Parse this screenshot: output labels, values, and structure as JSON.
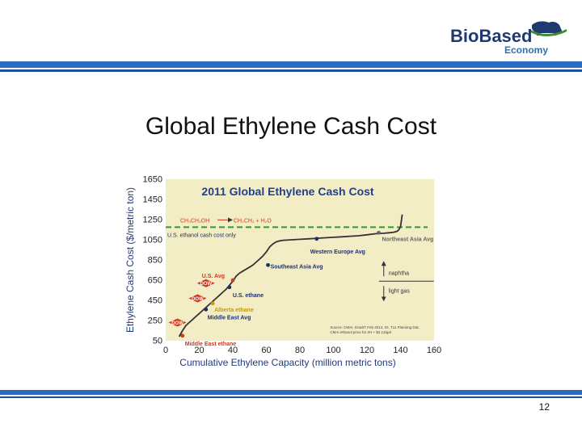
{
  "slide": {
    "title": "Global Ethylene Cash Cost",
    "page_number": "12"
  },
  "logo": {
    "word1": "BioBased",
    "word2": "Economy",
    "colors": {
      "primary": "#1f3a6e",
      "accent": "#2f6fb0",
      "green": "#3e8e2f"
    }
  },
  "colors": {
    "band_top": "#2a6cc1",
    "band_bottom": "#1d4f9c",
    "plot_bg": "#f3edc6",
    "chart_title": "#1f3f8f",
    "curve": "#333333",
    "ethanol_line": "#2f9a2f",
    "us": "#d03a1a",
    "dow": "#d03a1a",
    "navy_label": "#1f2f6f",
    "alberta": "#c49a10",
    "axis_label": "#1f3a7a"
  },
  "chart_data": {
    "type": "line",
    "title": "2011 Global Ethylene Cash Cost",
    "xlabel": "Cumulative Ethylene Capacity (million metric tons)",
    "ylabel": "Ethylene Cash Cost ($/metric ton)",
    "xlim": [
      0,
      160
    ],
    "ylim": [
      50,
      1650
    ],
    "xticks": [
      "0",
      "20",
      "40",
      "60",
      "80",
      "100",
      "120",
      "140",
      "160"
    ],
    "yticks": [
      "50",
      "250",
      "450",
      "650",
      "850",
      "1050",
      "1250",
      "1450",
      "1650"
    ],
    "grid": false,
    "series": [
      {
        "x": [
          8,
          10,
          12,
          14,
          16,
          18,
          20,
          22,
          24,
          26,
          28,
          30,
          32,
          34,
          36,
          38,
          40,
          42,
          44,
          46,
          48,
          50,
          52,
          54,
          56,
          58,
          60,
          62,
          64,
          66,
          68,
          70,
          75,
          80,
          85,
          90,
          95,
          100,
          105,
          110,
          115,
          120,
          125,
          130,
          133,
          136,
          138,
          139,
          140,
          141
        ],
        "y": [
          90,
          150,
          200,
          230,
          260,
          290,
          320,
          350,
          380,
          410,
          440,
          470,
          500,
          530,
          560,
          600,
          640,
          690,
          720,
          740,
          760,
          780,
          800,
          830,
          860,
          890,
          930,
          980,
          1010,
          1030,
          1040,
          1045,
          1050,
          1055,
          1060,
          1065,
          1070,
          1075,
          1080,
          1085,
          1090,
          1100,
          1110,
          1115,
          1120,
          1125,
          1135,
          1150,
          1180,
          1300
        ]
      }
    ],
    "reference_line": {
      "y": 1175,
      "style": "dashed",
      "label": "U.S. ethanol cash cost only"
    },
    "formula_labels": [
      "CH₃CH₂OH",
      "CH₂CH₂ + H₂O"
    ],
    "point_labels": [
      {
        "label": "Northeast Asia Avg",
        "x": 127,
        "y": 1120
      },
      {
        "label": "Western Europe Avg",
        "x": 90,
        "y": 1060
      },
      {
        "label": "Southeast Asia Avg",
        "x": 61,
        "y": 800
      },
      {
        "label": "U.S. Avg",
        "x": 40,
        "y": 650
      },
      {
        "label": "U.S. ethane",
        "x": 38,
        "y": 580
      },
      {
        "label": "Alberta ethane",
        "x": 28,
        "y": 420
      },
      {
        "label": "Middle East Avg",
        "x": 24,
        "y": 360
      },
      {
        "label": "Middle East ethane",
        "x": 10,
        "y": 100
      }
    ],
    "dow_markers": [
      {
        "label": "DOW",
        "x": 24,
        "y": 620
      },
      {
        "label": "DOW",
        "x": 19,
        "y": 470
      },
      {
        "label": "DOW",
        "x": 7,
        "y": 230
      }
    ],
    "legend": {
      "top": "naphtha",
      "bottom": "light gas"
    },
    "source_note": {
      "line1": "Source: CMAI, Dow/IT Feb 2012, IO, T11 Planning Dat;",
      "line2": "CMAI ethanol price for 2H + $2.13/gal"
    }
  }
}
